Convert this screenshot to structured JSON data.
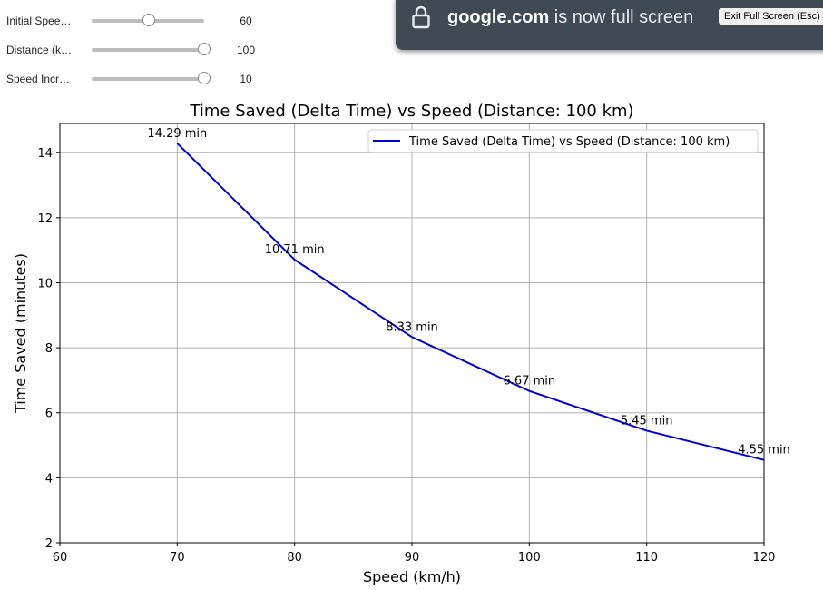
{
  "widgets": [
    {
      "label": "Initial Spee…",
      "value": "60",
      "fill_fraction": 0.5
    },
    {
      "label": "Distance (k…",
      "value": "100",
      "fill_fraction": 1.0
    },
    {
      "label": "Speed Incr…",
      "value": "10",
      "fill_fraction": 1.0
    }
  ],
  "fullscreen_notice": {
    "domain": "google.com",
    "message": " is now full screen",
    "exit_label": "Exit Full Screen (Esc)"
  },
  "chart_data": {
    "type": "line",
    "title": "Time Saved (Delta Time) vs Speed (Distance: 100 km)",
    "xlabel": "Speed (km/h)",
    "ylabel": "Time Saved (minutes)",
    "xlim": [
      60,
      120
    ],
    "ylim": [
      2,
      14.9
    ],
    "xticks": [
      60,
      70,
      80,
      90,
      100,
      110,
      120
    ],
    "yticks": [
      2,
      4,
      6,
      8,
      10,
      12,
      14
    ],
    "grid": true,
    "legend_position": "top-right",
    "series": [
      {
        "name": "Time Saved (Delta Time) vs Speed (Distance: 100 km)",
        "color": "#0000cc",
        "x": [
          70,
          80,
          90,
          100,
          110,
          120
        ],
        "y": [
          14.29,
          10.71,
          8.33,
          6.67,
          5.45,
          4.55
        ],
        "labels": [
          "14.29 min",
          "10.71 min",
          "8.33 min",
          "6.67 min",
          "5.45 min",
          "4.55 min"
        ]
      }
    ]
  }
}
